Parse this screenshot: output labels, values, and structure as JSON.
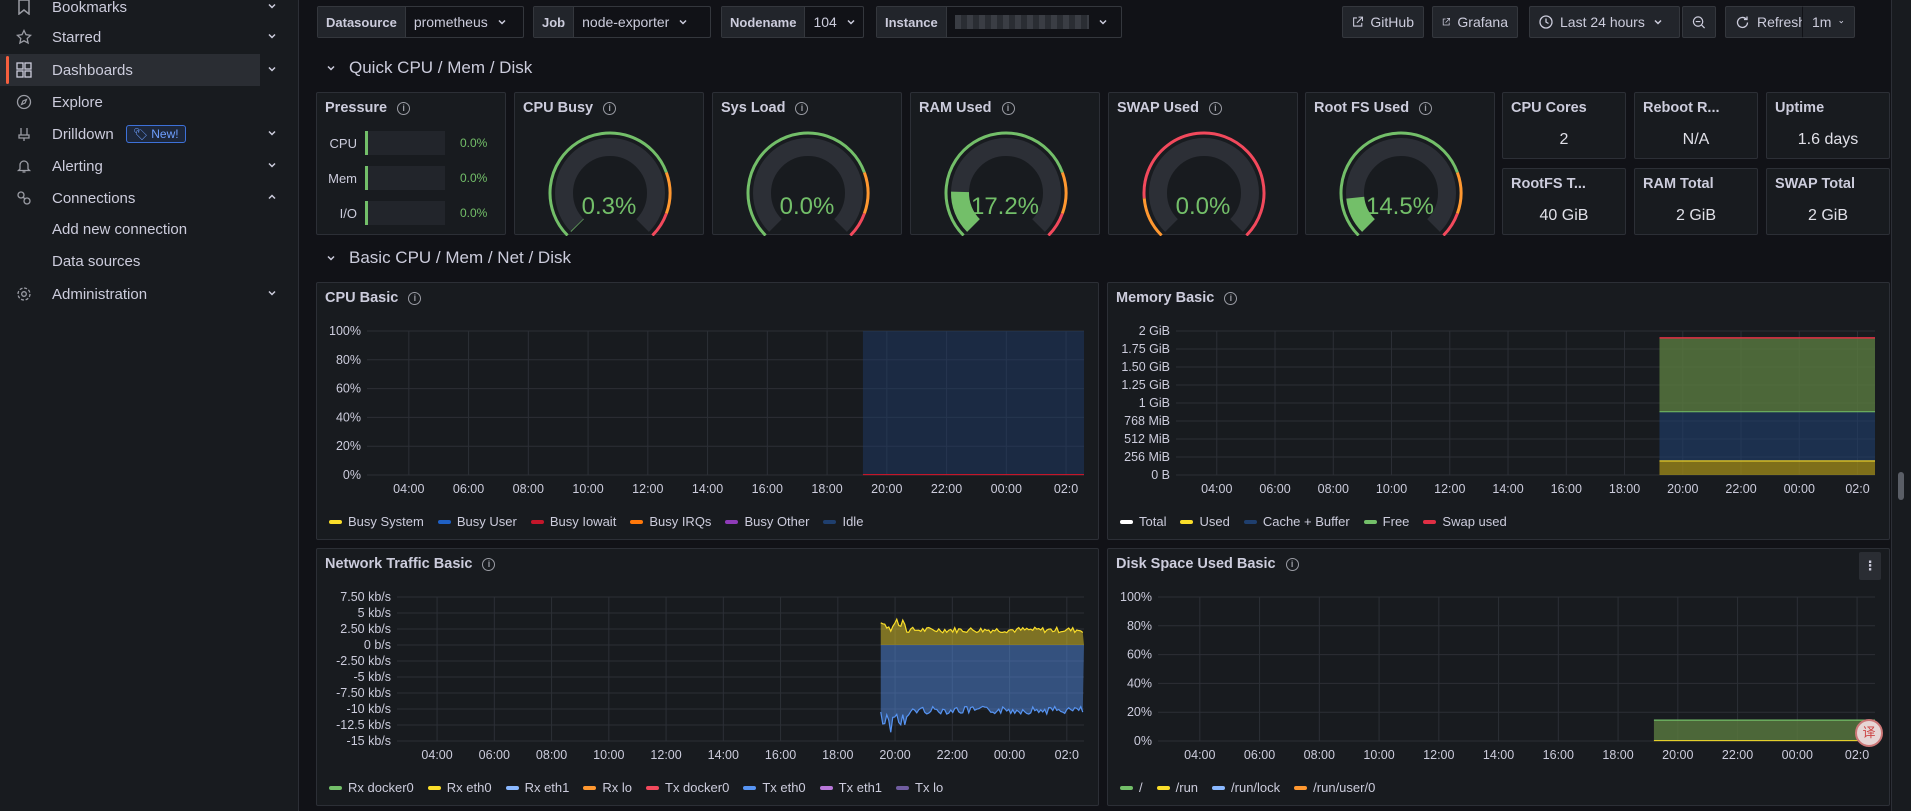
{
  "sidebar": {
    "items": [
      {
        "label": "Bookmarks",
        "icon": "bookmark-icon"
      },
      {
        "label": "Starred",
        "icon": "star-icon"
      },
      {
        "label": "Dashboards",
        "icon": "dashboards-grid-icon"
      },
      {
        "label": "Explore",
        "icon": "compass-icon"
      },
      {
        "label": "Drilldown",
        "icon": "drilldown-icon",
        "badge": "New!"
      },
      {
        "label": "Alerting",
        "icon": "bell-icon"
      },
      {
        "label": "Connections",
        "icon": "connections-icon"
      },
      {
        "label": "Administration",
        "icon": "gear-icon"
      }
    ],
    "connections_sub": [
      "Add new connection",
      "Data sources"
    ]
  },
  "variables": {
    "datasource": {
      "label": "Datasource",
      "value": "prometheus"
    },
    "job": {
      "label": "Job",
      "value": "node-exporter"
    },
    "nodename": {
      "label": "Nodename",
      "value": "104"
    },
    "instance": {
      "label": "Instance",
      "value": ""
    }
  },
  "toolbar": {
    "github": "GitHub",
    "grafana": "Grafana",
    "time_range": "Last 24 hours",
    "refresh": "Refresh",
    "refresh_interval": "1m"
  },
  "rows": {
    "quick": "Quick CPU / Mem / Disk",
    "basic": "Basic CPU / Mem / Net / Disk"
  },
  "pressure": {
    "title": "Pressure",
    "items": [
      {
        "name": "CPU",
        "value": "0.0%",
        "fraction": 0.0
      },
      {
        "name": "Mem",
        "value": "0.0%",
        "fraction": 0.0
      },
      {
        "name": "I/O",
        "value": "0.0%",
        "fraction": 0.0
      }
    ]
  },
  "gauges": [
    {
      "title": "CPU Busy",
      "value": "0.3%",
      "fraction": 0.003
    },
    {
      "title": "Sys Load",
      "value": "0.0%",
      "fraction": 0.0
    },
    {
      "title": "RAM Used",
      "value": "17.2%",
      "fraction": 0.172
    },
    {
      "title": "SWAP Used",
      "value": "0.0%",
      "fraction": 0.0
    },
    {
      "title": "Root FS Used",
      "value": "14.5%",
      "fraction": 0.145
    }
  ],
  "stats": [
    {
      "title": "CPU Cores",
      "value": "2"
    },
    {
      "title": "Reboot R...",
      "value": "N/A"
    },
    {
      "title": "Uptime",
      "value": "1.6 days"
    },
    {
      "title": "RootFS T...",
      "value": "40 GiB"
    },
    {
      "title": "RAM Total",
      "value": "2 GiB"
    },
    {
      "title": "SWAP Total",
      "value": "2 GiB"
    }
  ],
  "x_ticks": [
    "04:00",
    "06:00",
    "08:00",
    "10:00",
    "12:00",
    "14:00",
    "16:00",
    "18:00",
    "20:00",
    "22:00",
    "00:00",
    "02:0"
  ],
  "chart_data": [
    {
      "type": "area",
      "title": "CPU Basic",
      "y_ticks": [
        "100%",
        "80%",
        "60%",
        "40%",
        "20%",
        "0%"
      ],
      "ylim": [
        0,
        100
      ],
      "data_start": "19:12",
      "series": [
        {
          "name": "Busy System",
          "color": "#fade2a",
          "value": 0.2
        },
        {
          "name": "Busy User",
          "color": "#1f60c4",
          "value": 0.1
        },
        {
          "name": "Busy Iowait",
          "color": "#c4162a",
          "value": 0.0
        },
        {
          "name": "Busy IRQs",
          "color": "#ff780a",
          "value": 0.0
        },
        {
          "name": "Busy Other",
          "color": "#8f3bb8",
          "value": 0.0
        },
        {
          "name": "Idle",
          "color": "#1f3f6e",
          "value": 99.7
        }
      ]
    },
    {
      "type": "area",
      "title": "Memory Basic",
      "y_ticks": [
        "2 GiB",
        "1.75 GiB",
        "1.50 GiB",
        "1.25 GiB",
        "1 GiB",
        "768 MiB",
        "512 MiB",
        "256 MiB",
        "0 B"
      ],
      "ylim": [
        0,
        2048
      ],
      "data_start": "19:12",
      "series": [
        {
          "name": "Total",
          "color": "#ffffff",
          "value_mib": 1950
        },
        {
          "name": "Used",
          "color": "#fade2a",
          "value_mib": 200
        },
        {
          "name": "Cache + Buffer",
          "color": "#1f3f6e",
          "value_mib": 700
        },
        {
          "name": "Free",
          "color": "#73bf69",
          "value_mib": 1050
        },
        {
          "name": "Swap used",
          "color": "#e02f44",
          "value_mib": 0
        }
      ]
    },
    {
      "type": "line",
      "title": "Network Traffic Basic",
      "y_ticks": [
        "7.50 kb/s",
        "5 kb/s",
        "2.50 kb/s",
        "0 b/s",
        "-2.50 kb/s",
        "-5 kb/s",
        "-7.50 kb/s",
        "-10 kb/s",
        "-12.5 kb/s",
        "-15 kb/s"
      ],
      "ylim": [
        -15,
        7.5
      ],
      "data_start": "19:30",
      "series": [
        {
          "name": "Rx docker0",
          "color": "#73bf69"
        },
        {
          "name": "Rx eth0",
          "color": "#fade2a",
          "approx_value": 2.0
        },
        {
          "name": "Rx eth1",
          "color": "#8ab8ff"
        },
        {
          "name": "Rx lo",
          "color": "#ff9830"
        },
        {
          "name": "Tx docker0",
          "color": "#f2495c"
        },
        {
          "name": "Tx eth0",
          "color": "#5794f2",
          "approx_value": -10.0
        },
        {
          "name": "Tx eth1",
          "color": "#b877d9"
        },
        {
          "name": "Tx lo",
          "color": "#705da0"
        }
      ]
    },
    {
      "type": "area",
      "title": "Disk Space Used Basic",
      "y_ticks": [
        "100%",
        "80%",
        "60%",
        "40%",
        "20%",
        "0%"
      ],
      "ylim": [
        0,
        100
      ],
      "data_start": "19:12",
      "series": [
        {
          "name": "/",
          "color": "#73bf69",
          "value": 14.5
        },
        {
          "name": "/run",
          "color": "#fade2a",
          "value": 0.1
        },
        {
          "name": "/run/lock",
          "color": "#8ab8ff",
          "value": 0.0
        },
        {
          "name": "/run/user/0",
          "color": "#ff9830",
          "value": 0.0
        }
      ]
    }
  ],
  "colors": {
    "accent": "#f55f3e",
    "good": "#73bf69",
    "panel_bg": "#181b1f",
    "page_bg": "#111217"
  }
}
